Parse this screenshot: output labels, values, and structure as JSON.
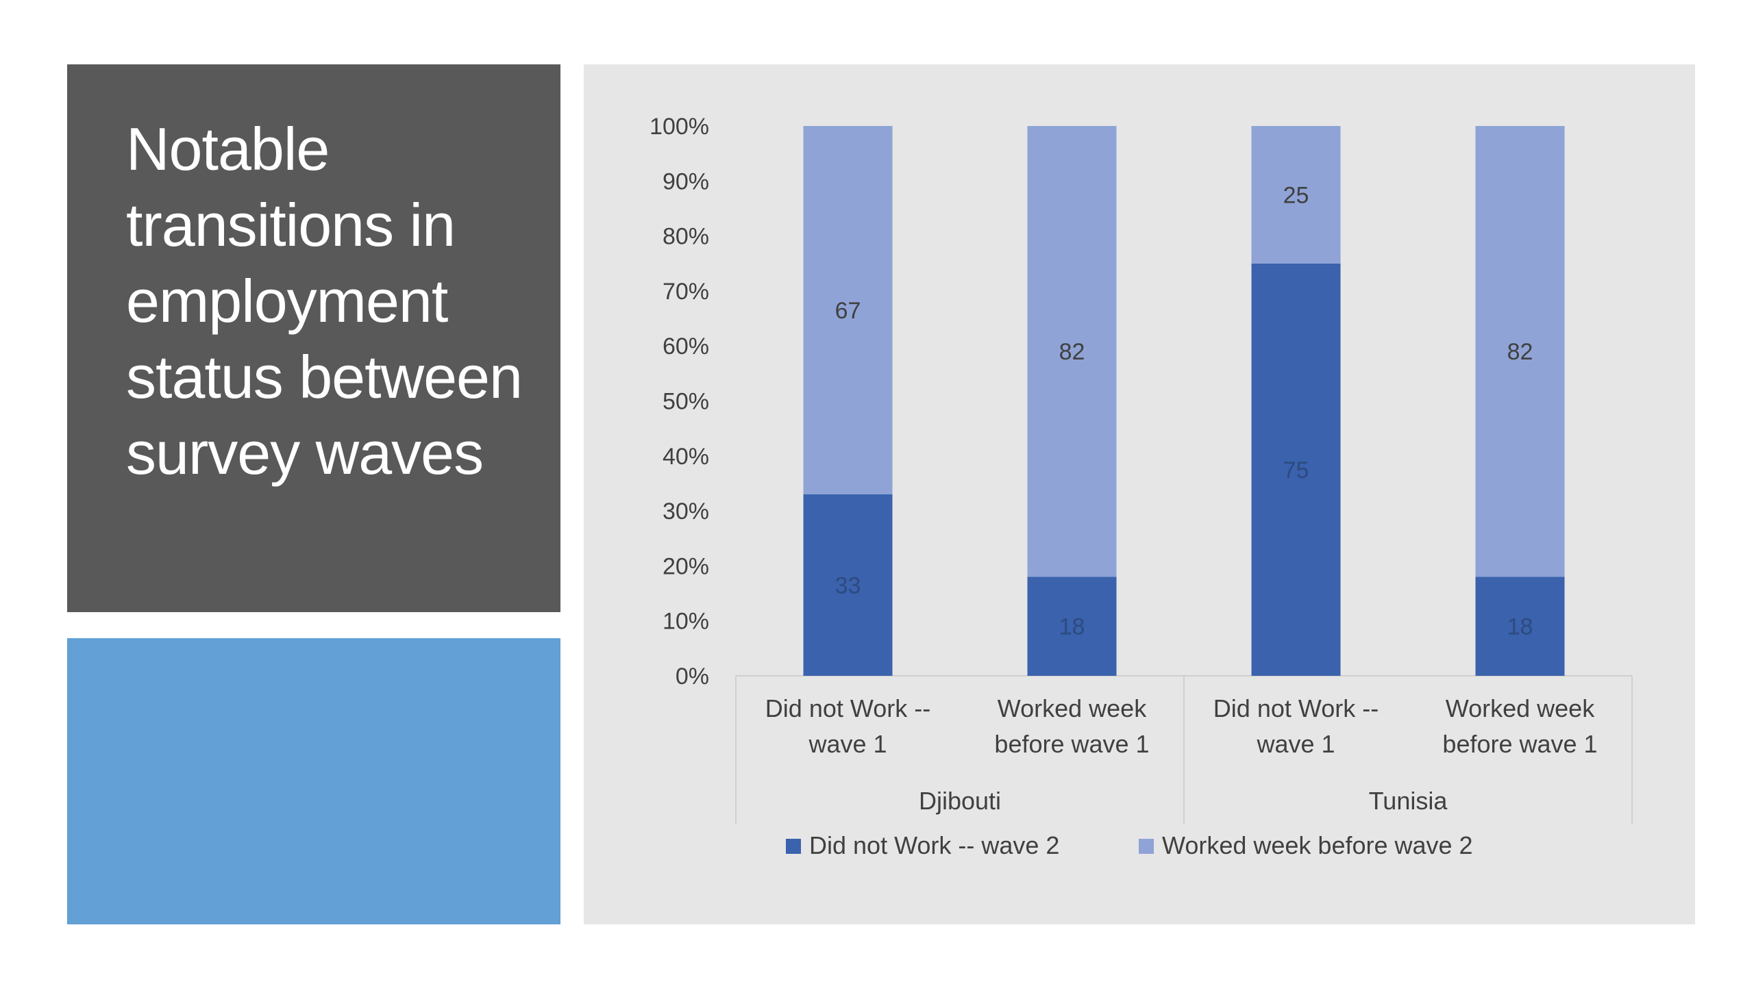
{
  "slide": {
    "title": "Notable transitions in employment status between survey waves"
  },
  "colors": {
    "title_bg": "#595959",
    "accent_block": "#62a0d6",
    "chart_bg": "#e7e6e6",
    "series_dark": "#3a62ad",
    "series_light": "#8fa3d6"
  },
  "chart_data": {
    "type": "bar",
    "stacked": "percent",
    "categories": [
      "Did not Work -- wave 1",
      "Worked week before wave 1",
      "Did not Work -- wave 1",
      "Worked week before wave 1"
    ],
    "category_lines": [
      [
        "Did not Work --",
        "wave 1"
      ],
      [
        "Worked week",
        "before wave 1"
      ],
      [
        "Did not Work --",
        "wave 1"
      ],
      [
        "Worked week",
        "before wave 1"
      ]
    ],
    "groups": [
      {
        "name": "Djibouti",
        "categories": [
          0,
          1
        ]
      },
      {
        "name": "Tunisia",
        "categories": [
          2,
          3
        ]
      }
    ],
    "series": [
      {
        "name": "Did not Work -- wave 2",
        "values": [
          33,
          18,
          75,
          18
        ],
        "color": "#3a62ad"
      },
      {
        "name": "Worked week before wave 2",
        "values": [
          67,
          82,
          25,
          82
        ],
        "color": "#8fa3d6"
      }
    ],
    "y_ticks": [
      "0%",
      "10%",
      "20%",
      "30%",
      "40%",
      "50%",
      "60%",
      "70%",
      "80%",
      "90%",
      "100%"
    ],
    "ylim": [
      0,
      100
    ],
    "grid": false,
    "legend_position": "bottom"
  }
}
